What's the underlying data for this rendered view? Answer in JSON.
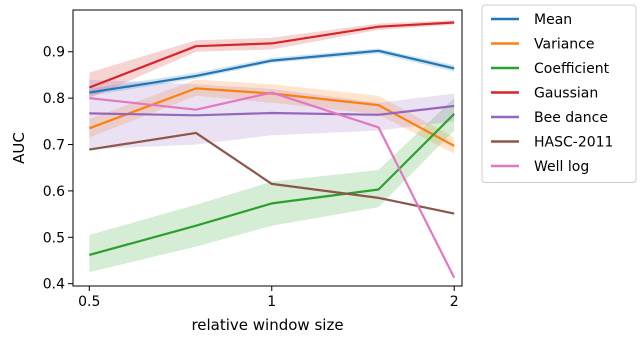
{
  "chart_data": {
    "type": "line",
    "title": "",
    "xlabel": "relative window size",
    "ylabel": "AUC",
    "x": [
      0.5,
      0.75,
      1.0,
      1.5,
      2.0
    ],
    "x_scale": "log",
    "xlim": [
      0.47,
      2.06
    ],
    "ylim": [
      0.395,
      0.99
    ],
    "xticks": [
      0.5,
      1,
      2
    ],
    "xtick_labels": [
      "0.5",
      "1",
      "2"
    ],
    "yticks": [
      0.4,
      0.5,
      0.6,
      0.7,
      0.8,
      0.9
    ],
    "ytick_labels": [
      "0.4",
      "0.5",
      "0.6",
      "0.7",
      "0.8",
      "0.9"
    ],
    "grid": false,
    "legend_placement": "outside upper right",
    "series": [
      {
        "name": "Mean",
        "color": "#1f77b4",
        "values": [
          0.812,
          0.848,
          0.881,
          0.902,
          0.864
        ],
        "band_low": [
          0.805,
          0.842,
          0.876,
          0.896,
          0.857
        ],
        "band_high": [
          0.82,
          0.855,
          0.887,
          0.907,
          0.871
        ]
      },
      {
        "name": "Variance",
        "color": "#ff7f0e",
        "values": [
          0.735,
          0.821,
          0.81,
          0.785,
          0.697
        ],
        "band_low": [
          0.715,
          0.805,
          0.79,
          0.765,
          0.68
        ],
        "band_high": [
          0.755,
          0.84,
          0.83,
          0.805,
          0.715
        ]
      },
      {
        "name": "Coefficient",
        "color": "#2ca02c",
        "values": [
          0.462,
          0.525,
          0.573,
          0.603,
          0.766
        ],
        "band_low": [
          0.425,
          0.48,
          0.525,
          0.565,
          0.73
        ],
        "band_high": [
          0.505,
          0.57,
          0.62,
          0.645,
          0.8
        ]
      },
      {
        "name": "Gaussian",
        "color": "#d62728",
        "values": [
          0.823,
          0.912,
          0.918,
          0.954,
          0.963
        ],
        "band_low": [
          0.8,
          0.9,
          0.905,
          0.947,
          0.958
        ],
        "band_high": [
          0.855,
          0.925,
          0.93,
          0.961,
          0.968
        ]
      },
      {
        "name": "Bee dance",
        "color": "#9467bd",
        "values": [
          0.767,
          0.763,
          0.768,
          0.764,
          0.783
        ],
        "band_low": [
          0.69,
          0.7,
          0.72,
          0.73,
          0.75
        ],
        "band_high": [
          0.84,
          0.83,
          0.82,
          0.79,
          0.81
        ]
      },
      {
        "name": "HASC-2011",
        "color": "#8c564b",
        "values": [
          0.689,
          0.725,
          0.615,
          0.585,
          0.551
        ]
      },
      {
        "name": "Well log",
        "color": "#e377c2",
        "values": [
          0.8,
          0.775,
          0.812,
          0.737,
          0.413
        ]
      }
    ]
  }
}
